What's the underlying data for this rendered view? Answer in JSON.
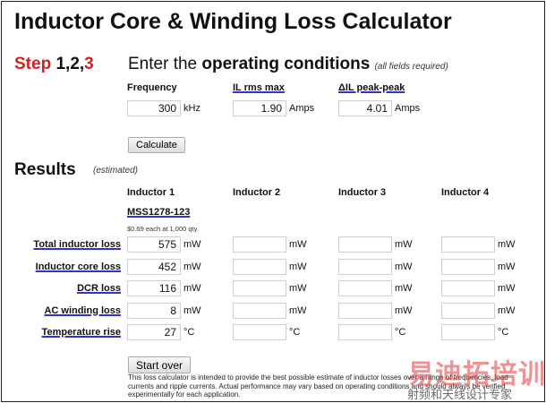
{
  "title": "Inductor Core & Winding Loss Calculator",
  "step": {
    "word": "Step",
    "nums": "1,2,",
    "last": "3",
    "prefix": "Enter the",
    "bold": "operating conditions",
    "note": "(all fields required)"
  },
  "inputs": [
    {
      "label": "Frequency",
      "value": "300",
      "unit": "kHz"
    },
    {
      "label": "IL rms max",
      "value": "1.90",
      "unit": "Amps"
    },
    {
      "label": "ΔIL peak-peak",
      "value": "4.01",
      "unit": "Amps"
    }
  ],
  "calculate_label": "Calculate",
  "results": {
    "title": "Results",
    "note": "(estimated)",
    "inductors": [
      "Inductor 1",
      "Inductor 2",
      "Inductor 3",
      "Inductor 4"
    ],
    "part": "MSS1278-123",
    "price": "$0.69 each at 1,000 qty.",
    "rows": [
      {
        "label": "Total inductor loss",
        "unit": "mW",
        "values": [
          "575",
          "",
          "",
          ""
        ]
      },
      {
        "label": "Inductor core loss",
        "unit": "mW",
        "values": [
          "452",
          "",
          "",
          ""
        ]
      },
      {
        "label": "DCR loss",
        "unit": "mW",
        "values": [
          "116",
          "",
          "",
          ""
        ]
      },
      {
        "label": "AC winding loss",
        "unit": "mW",
        "values": [
          "8",
          "",
          "",
          ""
        ]
      },
      {
        "label": "Temperature rise",
        "unit": "°C",
        "values": [
          "27",
          "",
          "",
          ""
        ]
      }
    ]
  },
  "start_over_label": "Start over",
  "disclaimer": "This loss calculator is intended to provide the best possible estimate of inductor losses over a range of frequencies, load currents and ripple currents. Actual performance may vary based on operating conditions and should always be verified experimentally for each application.",
  "watermark": {
    "line1": "易迪拓培训",
    "line2": "射频和天线设计专家"
  }
}
